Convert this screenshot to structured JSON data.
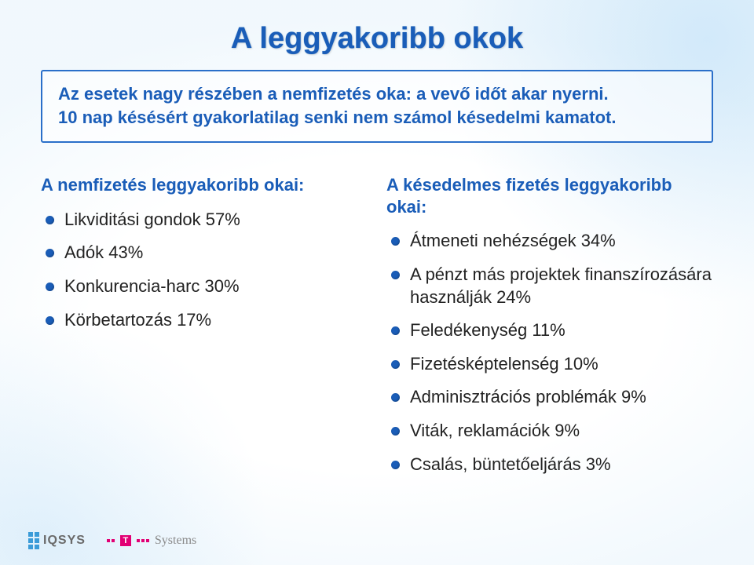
{
  "title": "A leggyakoribb okok",
  "box": {
    "line1": "Az esetek nagy részében a nemfizetés oka: a vevő időt akar nyerni.",
    "line2": "10 nap késésért gyakorlatilag senki nem számol késedelmi kamatot."
  },
  "left": {
    "heading": "A nemfizetés leggyakoribb okai:",
    "items": [
      "Likviditási gondok 57%",
      "Adók 43%",
      "Konkurencia-harc 30%",
      "Körbetartozás 17%"
    ]
  },
  "right": {
    "heading": "A késedelmes fizetés leggyakoribb okai:",
    "items": [
      "Átmeneti nehézségek 34%",
      "A pénzt más projektek finanszírozására használják 24%",
      "Feledékenység 11%",
      "Fizetésképtelenség 10%",
      "Adminisztrációs problémák 9%",
      "Viták, reklamációk 9%",
      "Csalás, büntetőeljárás 3%"
    ]
  },
  "logos": {
    "iqsys": "IQSYS",
    "tsystems": "Systems"
  },
  "colors": {
    "brand_blue": "#1a5db8",
    "border_blue": "#2a6fc9",
    "bullet_blue": "#1a5db8",
    "iqsys_dot": "#3a9bd8",
    "magenta": "#e20074",
    "text": "#222222",
    "logo_gray": "#6a6a6a"
  },
  "typography": {
    "title_size": 38,
    "heading_size": 22,
    "body_size": 22,
    "box_size": 22,
    "font_family": "Arial"
  }
}
